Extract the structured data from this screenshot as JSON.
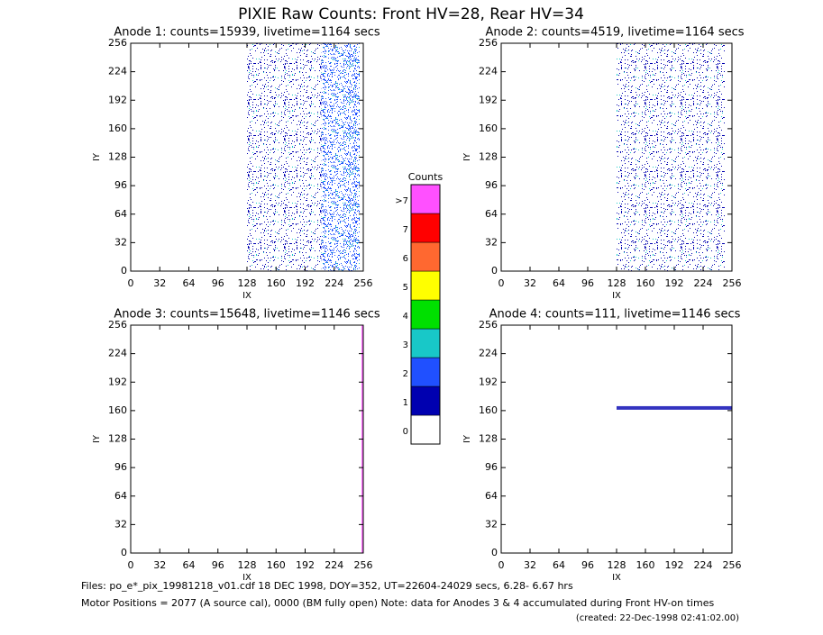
{
  "title": "PIXIE Raw Counts:  Front HV=28, Rear HV=34",
  "chart_data": [
    {
      "type": "heatmap",
      "title": "Anode 1: counts=15939, livetime=1164 secs",
      "xlabel": "IX",
      "ylabel": "IY",
      "xlim": [
        0,
        256
      ],
      "ylim": [
        0,
        256
      ],
      "xticks": [
        0,
        32,
        64,
        96,
        128,
        160,
        192,
        224,
        256
      ],
      "yticks": [
        0,
        32,
        64,
        96,
        128,
        160,
        192,
        224,
        256
      ],
      "hit_regions": [
        {
          "xlim": [
            128,
            210
          ],
          "ylim": [
            0,
            256
          ],
          "value": 1
        },
        {
          "xlim": [
            210,
            252
          ],
          "ylim": [
            0,
            256
          ],
          "value": 2
        }
      ]
    },
    {
      "type": "heatmap",
      "title": "Anode 2: counts=4519, livetime=1164 secs",
      "xlabel": "IX",
      "ylabel": "IY",
      "xlim": [
        0,
        256
      ],
      "ylim": [
        0,
        256
      ],
      "xticks": [
        0,
        32,
        64,
        96,
        128,
        160,
        192,
        224,
        256
      ],
      "yticks": [
        0,
        32,
        64,
        96,
        128,
        160,
        192,
        224,
        256
      ],
      "hit_regions": [
        {
          "xlim": [
            128,
            248
          ],
          "ylim": [
            0,
            256
          ],
          "value": 1
        }
      ]
    },
    {
      "type": "heatmap",
      "title": "Anode 3: counts=15648, livetime=1146 secs",
      "xlabel": "IX",
      "ylabel": "IY",
      "xlim": [
        0,
        256
      ],
      "ylim": [
        0,
        256
      ],
      "xticks": [
        0,
        32,
        64,
        96,
        128,
        160,
        192,
        224,
        256
      ],
      "yticks": [
        0,
        32,
        64,
        96,
        128,
        160,
        192,
        224,
        256
      ],
      "hit_regions": [
        {
          "xlim": [
            254,
            256
          ],
          "ylim": [
            0,
            256
          ],
          "value": 8
        }
      ]
    },
    {
      "type": "heatmap",
      "title": "Anode 4: counts=111, livetime=1146 secs",
      "xlabel": "IX",
      "ylabel": "IY",
      "xlim": [
        0,
        256
      ],
      "ylim": [
        0,
        256
      ],
      "xticks": [
        0,
        32,
        64,
        96,
        128,
        160,
        192,
        224,
        256
      ],
      "yticks": [
        0,
        32,
        64,
        96,
        128,
        160,
        192,
        224,
        256
      ],
      "hit_regions": [
        {
          "xlim": [
            128,
            256
          ],
          "ylim": [
            161,
            165
          ],
          "value": 1
        }
      ]
    },
    {
      "type": "colorbar",
      "title": "Counts",
      "categories": [
        "0",
        "1",
        "2",
        "3",
        "4",
        "5",
        "6",
        "7",
        ">7"
      ],
      "colors": [
        "#ffffff",
        "#0000b0",
        "#2050ff",
        "#18c8c8",
        "#00e000",
        "#ffff00",
        "#ff6830",
        "#ff0000",
        "#ff50ff"
      ]
    }
  ],
  "footer": [
    "Files: po_e*_pix_19981218_v01.cdf    18 DEC 1998, DOY=352, UT=22604-24029 secs,  6.28- 6.67 hrs",
    "Motor Positions = 2077 (A source cal), 0000 (BM fully open)    Note: data for Anodes 3 & 4 accumulated during Front HV-on times",
    "(created: 22-Dec-1998 02:41:02.00)"
  ]
}
